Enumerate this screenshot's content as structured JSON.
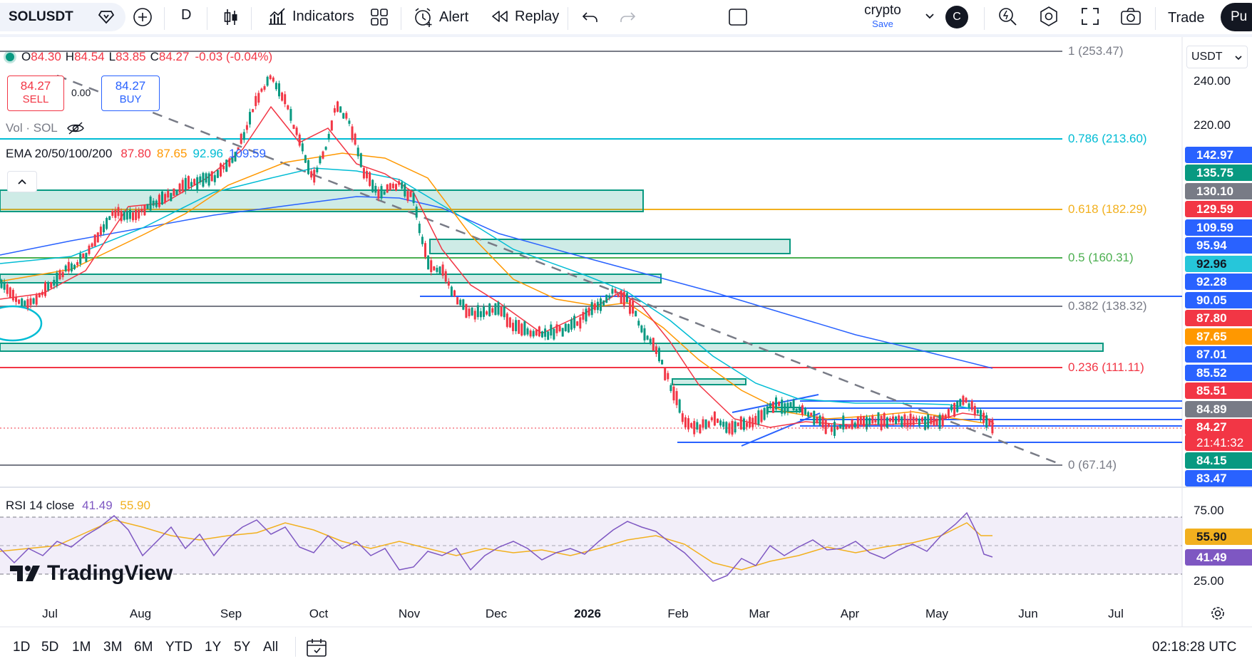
{
  "toolbar": {
    "symbol": "SOLUSDT",
    "interval": "D",
    "indicators_label": "Indicators",
    "alert_label": "Alert",
    "replay_label": "Replay",
    "layout_name": "crypto",
    "save_label": "Save",
    "avatar_letter": "C",
    "trade_label": "Trade",
    "publish_label": "Pu"
  },
  "legend": {
    "ohlc": [
      {
        "key": "O",
        "value": "84.30"
      },
      {
        "key": "H",
        "value": "84.54"
      },
      {
        "key": "L",
        "value": "83.85"
      },
      {
        "key": "C",
        "value": "84.27"
      }
    ],
    "change": "-0.03 (-0.04%)",
    "sell_price": "84.27",
    "sell_label": "SELL",
    "spread": "0.00",
    "buy_price": "84.27",
    "buy_label": "BUY",
    "vol_label": "Vol · SOL",
    "ema_label": "EMA 20/50/100/200",
    "ema_values": [
      {
        "value": "87.80",
        "color": "#f23645"
      },
      {
        "value": "87.65",
        "color": "#ff9800"
      },
      {
        "value": "92.96",
        "color": "#00bcd4"
      },
      {
        "value": "109.59",
        "color": "#2962ff"
      }
    ]
  },
  "currency": "USDT",
  "price_axis": {
    "ticks": [
      "240.00",
      "220.00"
    ],
    "labels": [
      {
        "value": "142.97",
        "color": "#2962ff"
      },
      {
        "value": "135.75",
        "color": "#089981"
      },
      {
        "value": "130.10",
        "color": "#787b86"
      },
      {
        "value": "129.59",
        "color": "#f23645"
      },
      {
        "value": "109.59",
        "color": "#2962ff"
      },
      {
        "value": "95.94",
        "color": "#2962ff"
      },
      {
        "value": "92.96",
        "color": "#26c6da"
      },
      {
        "value": "92.28",
        "color": "#2962ff"
      },
      {
        "value": "90.05",
        "color": "#2962ff"
      },
      {
        "value": "87.80",
        "color": "#f23645"
      },
      {
        "value": "87.65",
        "color": "#ff9800"
      },
      {
        "value": "87.01",
        "color": "#2962ff"
      },
      {
        "value": "85.52",
        "color": "#2962ff"
      },
      {
        "value": "85.51",
        "color": "#f23645"
      },
      {
        "value": "84.89",
        "color": "#787b86"
      },
      {
        "value": "84.27",
        "color": "#f23645"
      },
      {
        "value": "21:41:32",
        "color": "#f23645"
      },
      {
        "value": "84.15",
        "color": "#089981"
      },
      {
        "value": "83.47",
        "color": "#2962ff"
      }
    ]
  },
  "fib_levels": [
    {
      "text": "1 (253.47)",
      "color": "#787b86"
    },
    {
      "text": "0.786 (213.60)",
      "color": "#00bcd4"
    },
    {
      "text": "0.618 (182.29)",
      "color": "#f2b01e"
    },
    {
      "text": "0.5 (160.31)",
      "color": "#4caf50"
    },
    {
      "text": "0.382 (138.32)",
      "color": "#787b86"
    },
    {
      "text": "0.236 (111.11)",
      "color": "#f23645"
    },
    {
      "text": "0 (67.14)",
      "color": "#787b86"
    }
  ],
  "rsi": {
    "label": "RSI 14 close",
    "value": "41.49",
    "ma_value": "55.90",
    "ticks": [
      "75.00",
      "25.00"
    ],
    "label_value_color": "#7e57c2",
    "label_ma_color": "#f2b01e"
  },
  "watermark": "TradingView",
  "time_axis": [
    "Jul",
    "Aug",
    "Sep",
    "Oct",
    "Nov",
    "Dec",
    "2026",
    "Feb",
    "Mar",
    "Apr",
    "May",
    "Jun",
    "Jul"
  ],
  "ranges": [
    "1D",
    "5D",
    "1M",
    "3M",
    "6M",
    "YTD",
    "1Y",
    "5Y",
    "All"
  ],
  "clock": "02:18:28 UTC"
}
